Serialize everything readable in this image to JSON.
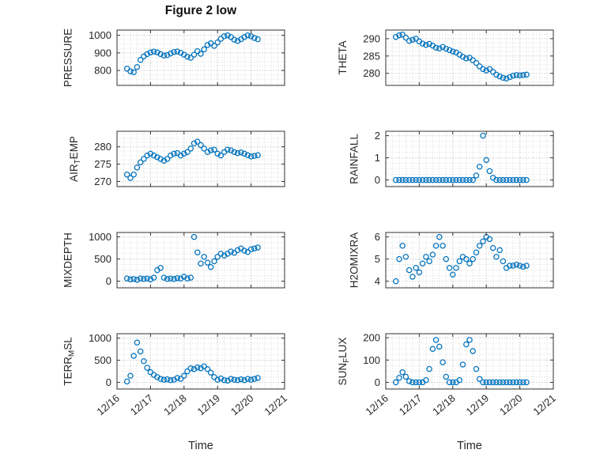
{
  "title": "Figure 2 low",
  "style": {
    "marker_color": "#0072BD",
    "grid_style": "dotted",
    "axes_color": "#333333",
    "text_color": "#262626"
  },
  "chart_data": [
    {
      "id": "pressure",
      "type": "scatter",
      "position": {
        "row": 0,
        "col": 0
      },
      "ylabel": "PRESSURE",
      "ylabel_parts": [
        {
          "text": "PRESSURE",
          "sub": false
        }
      ],
      "yticks": [
        800,
        900,
        1000
      ],
      "ylim": [
        715,
        1030
      ],
      "xlim": [
        0,
        5
      ],
      "xticks": [
        0,
        1,
        2,
        3,
        4,
        5
      ],
      "x": [
        0.3,
        0.4,
        0.5,
        0.6,
        0.7,
        0.8,
        0.9,
        1,
        1.1,
        1.2,
        1.3,
        1.4,
        1.5,
        1.6,
        1.7,
        1.8,
        1.9,
        2,
        2.1,
        2.2,
        2.3,
        2.4,
        2.5,
        2.6,
        2.7,
        2.8,
        2.9,
        3,
        3.1,
        3.2,
        3.3,
        3.4,
        3.5,
        3.6,
        3.7,
        3.8,
        3.9,
        4,
        4.1,
        4.2
      ],
      "y": [
        810,
        795,
        790,
        820,
        860,
        880,
        893,
        902,
        907,
        903,
        893,
        885,
        888,
        897,
        905,
        908,
        901,
        890,
        878,
        872,
        890,
        910,
        895,
        920,
        945,
        955,
        940,
        960,
        980,
        995,
        1000,
        990,
        975,
        968,
        978,
        990,
        1000,
        995,
        985,
        978
      ]
    },
    {
      "id": "theta",
      "type": "scatter",
      "position": {
        "row": 0,
        "col": 1
      },
      "ylabel": "THETA",
      "ylabel_parts": [
        {
          "text": "THETA",
          "sub": false
        }
      ],
      "yticks": [
        280,
        285,
        290
      ],
      "ylim": [
        276.5,
        292.5
      ],
      "xlim": [
        0,
        5
      ],
      "xticks": [
        0,
        1,
        2,
        3,
        4,
        5
      ],
      "x": [
        0.3,
        0.4,
        0.5,
        0.6,
        0.7,
        0.8,
        0.9,
        1,
        1.1,
        1.2,
        1.3,
        1.4,
        1.5,
        1.6,
        1.7,
        1.8,
        1.9,
        2,
        2.1,
        2.2,
        2.3,
        2.4,
        2.5,
        2.6,
        2.7,
        2.8,
        2.9,
        3,
        3.1,
        3.2,
        3.3,
        3.4,
        3.5,
        3.6,
        3.7,
        3.8,
        3.9,
        4,
        4.1,
        4.2
      ],
      "y": [
        290.5,
        291,
        291.2,
        290.3,
        289.4,
        289.7,
        290,
        289.2,
        288.6,
        288.2,
        288.5,
        288,
        287.4,
        287.2,
        287.6,
        287.1,
        286.7,
        286.3,
        286,
        285.4,
        284.8,
        284.3,
        284.5,
        283.8,
        283,
        282,
        281.2,
        280.8,
        281.2,
        280.4,
        279.6,
        279.1,
        278.7,
        278.5,
        278.9,
        279.3,
        279.5,
        279.4,
        279.5,
        279.6
      ]
    },
    {
      "id": "airtemp",
      "type": "scatter",
      "position": {
        "row": 1,
        "col": 0
      },
      "ylabel": "AIR_TEMP",
      "ylabel_parts": [
        {
          "text": "AIR",
          "sub": false
        },
        {
          "text": "T",
          "sub": true
        },
        {
          "text": "EMP",
          "sub": false
        }
      ],
      "yticks": [
        270,
        275,
        280
      ],
      "ylim": [
        268.5,
        284.5
      ],
      "xlim": [
        0,
        5
      ],
      "xticks": [
        0,
        1,
        2,
        3,
        4,
        5
      ],
      "x": [
        0.3,
        0.4,
        0.5,
        0.6,
        0.7,
        0.8,
        0.9,
        1,
        1.1,
        1.2,
        1.3,
        1.4,
        1.5,
        1.6,
        1.7,
        1.8,
        1.9,
        2,
        2.1,
        2.2,
        2.3,
        2.4,
        2.5,
        2.6,
        2.7,
        2.8,
        2.9,
        3,
        3.1,
        3.2,
        3.3,
        3.4,
        3.5,
        3.6,
        3.7,
        3.8,
        3.9,
        4,
        4.1,
        4.2
      ],
      "y": [
        272,
        271,
        272,
        274,
        275.5,
        276.5,
        277.5,
        278,
        277.5,
        277,
        276.5,
        276,
        276.5,
        277.5,
        278,
        278.2,
        277.5,
        278,
        278.5,
        279.5,
        281,
        281.5,
        280.5,
        279.5,
        278.5,
        279,
        279.2,
        278,
        277.5,
        278.5,
        279.2,
        279,
        278.5,
        278.2,
        278.4,
        278,
        277.6,
        277.2,
        277.4,
        277.6
      ]
    },
    {
      "id": "rainfall",
      "type": "scatter",
      "position": {
        "row": 1,
        "col": 1
      },
      "ylabel": "RAINFALL",
      "ylabel_parts": [
        {
          "text": "RAINFALL",
          "sub": false
        }
      ],
      "yticks": [
        0,
        1,
        2
      ],
      "ylim": [
        -0.3,
        2.2
      ],
      "xlim": [
        0,
        5
      ],
      "xticks": [
        0,
        1,
        2,
        3,
        4,
        5
      ],
      "x": [
        0.3,
        0.4,
        0.5,
        0.6,
        0.7,
        0.8,
        0.9,
        1,
        1.1,
        1.2,
        1.3,
        1.4,
        1.5,
        1.6,
        1.7,
        1.8,
        1.9,
        2,
        2.1,
        2.2,
        2.3,
        2.4,
        2.5,
        2.6,
        2.7,
        2.8,
        2.9,
        3,
        3.1,
        3.2,
        3.3,
        3.4,
        3.5,
        3.6,
        3.7,
        3.8,
        3.9,
        4,
        4.1,
        4.2
      ],
      "y": [
        0,
        0,
        0,
        0,
        0,
        0,
        0,
        0,
        0,
        0,
        0,
        0,
        0,
        0,
        0,
        0,
        0,
        0,
        0,
        0,
        0,
        0,
        0,
        0,
        0.2,
        0.6,
        2,
        0.9,
        0.4,
        0.1,
        0,
        0,
        0,
        0,
        0,
        0,
        0,
        0,
        0,
        0
      ]
    },
    {
      "id": "mixdepth",
      "type": "scatter",
      "position": {
        "row": 2,
        "col": 0
      },
      "ylabel": "MIXDEPTH",
      "ylabel_parts": [
        {
          "text": "MIXDEPTH",
          "sub": false
        }
      ],
      "yticks": [
        0,
        500,
        1000
      ],
      "ylim": [
        -150,
        1100
      ],
      "xlim": [
        0,
        5
      ],
      "xticks": [
        0,
        1,
        2,
        3,
        4,
        5
      ],
      "x": [
        0.3,
        0.4,
        0.5,
        0.6,
        0.7,
        0.8,
        0.9,
        1,
        1.1,
        1.2,
        1.3,
        1.4,
        1.5,
        1.6,
        1.7,
        1.8,
        1.9,
        2,
        2.1,
        2.2,
        2.3,
        2.4,
        2.5,
        2.6,
        2.7,
        2.8,
        2.9,
        3,
        3.1,
        3.2,
        3.3,
        3.4,
        3.5,
        3.6,
        3.7,
        3.8,
        3.9,
        4,
        4.1,
        4.2
      ],
      "y": [
        60,
        40,
        50,
        30,
        60,
        50,
        60,
        40,
        80,
        250,
        300,
        80,
        50,
        60,
        50,
        70,
        60,
        100,
        60,
        80,
        1000,
        650,
        400,
        550,
        420,
        320,
        450,
        550,
        620,
        580,
        620,
        670,
        640,
        700,
        740,
        690,
        660,
        720,
        740,
        760
      ]
    },
    {
      "id": "h2omixra",
      "type": "scatter",
      "position": {
        "row": 2,
        "col": 1
      },
      "ylabel": "H2OMIXRA",
      "ylabel_parts": [
        {
          "text": "H2OMIXRA",
          "sub": false
        }
      ],
      "yticks": [
        4,
        5,
        6
      ],
      "ylim": [
        3.7,
        6.2
      ],
      "xlim": [
        0,
        5
      ],
      "xticks": [
        0,
        1,
        2,
        3,
        4,
        5
      ],
      "x": [
        0.3,
        0.4,
        0.5,
        0.6,
        0.7,
        0.8,
        0.9,
        1,
        1.1,
        1.2,
        1.3,
        1.4,
        1.5,
        1.6,
        1.7,
        1.8,
        1.9,
        2,
        2.1,
        2.2,
        2.3,
        2.4,
        2.5,
        2.6,
        2.7,
        2.8,
        2.9,
        3,
        3.1,
        3.2,
        3.3,
        3.4,
        3.5,
        3.6,
        3.7,
        3.8,
        3.9,
        4,
        4.1,
        4.2
      ],
      "y": [
        4,
        5,
        5.6,
        5.1,
        4.5,
        4.2,
        4.6,
        4.4,
        4.8,
        5.1,
        4.9,
        5.2,
        5.6,
        6,
        5.6,
        5,
        4.6,
        4.3,
        4.6,
        4.9,
        5.1,
        5,
        4.8,
        5,
        5.3,
        5.6,
        5.8,
        6,
        5.9,
        5.5,
        5.1,
        5.4,
        4.9,
        4.6,
        4.7,
        4.7,
        4.75,
        4.7,
        4.65,
        4.7
      ]
    },
    {
      "id": "terrmsl",
      "type": "scatter",
      "position": {
        "row": 3,
        "col": 0
      },
      "ylabel": "TERR_MSL",
      "ylabel_parts": [
        {
          "text": "TERR",
          "sub": false
        },
        {
          "text": "M",
          "sub": true
        },
        {
          "text": "SL",
          "sub": false
        }
      ],
      "yticks": [
        0,
        500,
        1000
      ],
      "ylim": [
        -150,
        1100
      ],
      "xlim": [
        0,
        5
      ],
      "xticks": [
        0,
        1,
        2,
        3,
        4,
        5
      ],
      "xlabel": "Time",
      "xticklabels": [
        "12/16",
        "12/17",
        "12/18",
        "12/19",
        "12/20",
        "12/21"
      ],
      "x": [
        0.3,
        0.4,
        0.5,
        0.6,
        0.7,
        0.8,
        0.9,
        1,
        1.1,
        1.2,
        1.3,
        1.4,
        1.5,
        1.6,
        1.7,
        1.8,
        1.9,
        2,
        2.1,
        2.2,
        2.3,
        2.4,
        2.5,
        2.6,
        2.7,
        2.8,
        2.9,
        3,
        3.1,
        3.2,
        3.3,
        3.4,
        3.5,
        3.6,
        3.7,
        3.8,
        3.9,
        4,
        4.1,
        4.2
      ],
      "y": [
        20,
        150,
        600,
        900,
        700,
        480,
        330,
        230,
        170,
        120,
        80,
        60,
        70,
        50,
        60,
        100,
        80,
        150,
        250,
        320,
        300,
        340,
        320,
        360,
        300,
        220,
        120,
        60,
        90,
        50,
        40,
        80,
        60,
        50,
        70,
        50,
        80,
        60,
        80,
        100
      ]
    },
    {
      "id": "sunflux",
      "type": "scatter",
      "position": {
        "row": 3,
        "col": 1
      },
      "ylabel": "SUN_FLUX",
      "ylabel_parts": [
        {
          "text": "SUN",
          "sub": false
        },
        {
          "text": "F",
          "sub": true
        },
        {
          "text": "LUX",
          "sub": false
        }
      ],
      "yticks": [
        0,
        100,
        200
      ],
      "ylim": [
        -30,
        218
      ],
      "xlim": [
        0,
        5
      ],
      "xticks": [
        0,
        1,
        2,
        3,
        4,
        5
      ],
      "xlabel": "Time",
      "xticklabels": [
        "12/16",
        "12/17",
        "12/18",
        "12/19",
        "12/20",
        "12/21"
      ],
      "x": [
        0.3,
        0.4,
        0.5,
        0.6,
        0.7,
        0.8,
        0.9,
        1,
        1.1,
        1.2,
        1.3,
        1.4,
        1.5,
        1.6,
        1.7,
        1.8,
        1.9,
        2,
        2.1,
        2.2,
        2.3,
        2.4,
        2.5,
        2.6,
        2.7,
        2.8,
        2.9,
        3,
        3.1,
        3.2,
        3.3,
        3.4,
        3.5,
        3.6,
        3.7,
        3.8,
        3.9,
        4,
        4.1,
        4.2
      ],
      "y": [
        0,
        20,
        45,
        25,
        5,
        0,
        0,
        0,
        0,
        10,
        60,
        150,
        190,
        160,
        90,
        25,
        0,
        0,
        0,
        10,
        80,
        170,
        190,
        140,
        60,
        15,
        0,
        0,
        0,
        0,
        0,
        0,
        0,
        0,
        0,
        0,
        0,
        0,
        0,
        0
      ]
    }
  ]
}
